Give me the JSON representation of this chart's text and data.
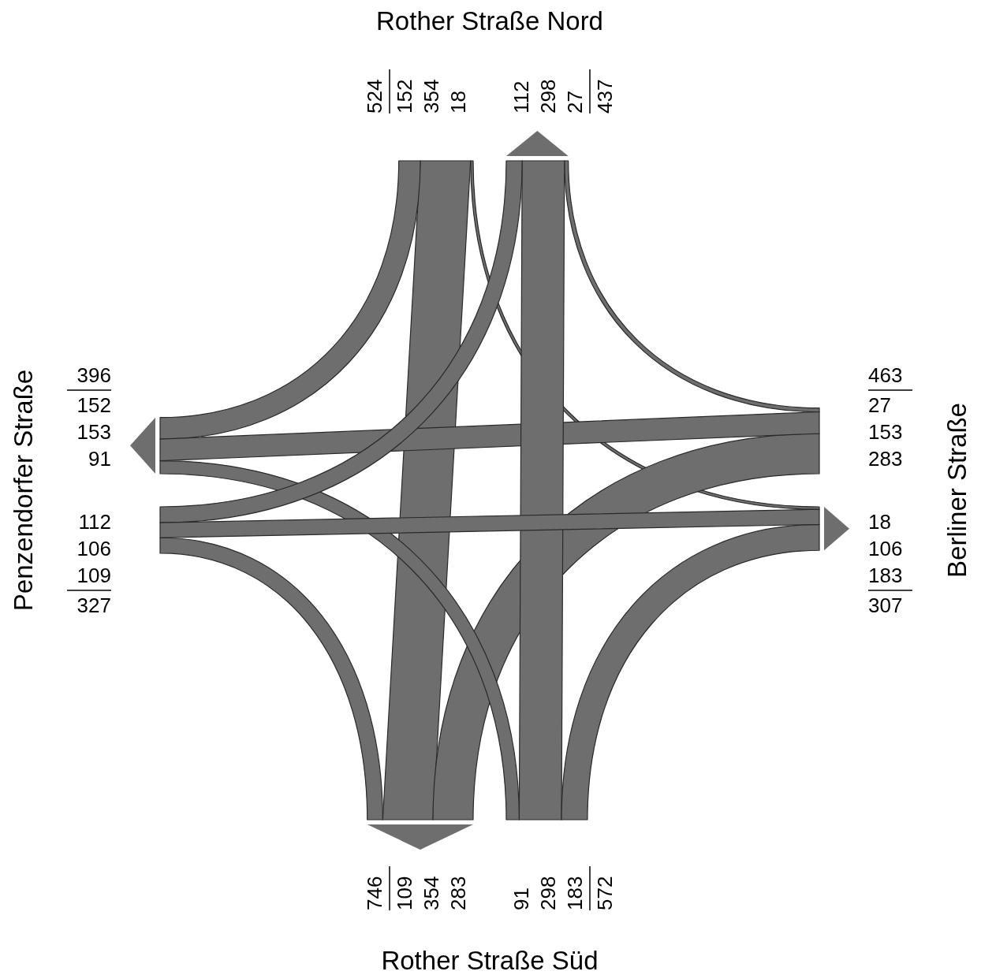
{
  "chart_data": {
    "type": "other",
    "categories": [
      "Rother Straße Nord",
      "Berliner Straße",
      "Rother Straße Süd",
      "Penzendorfer Straße"
    ],
    "series": [
      {
        "values": [
          null,
          18,
          354,
          152
        ]
      },
      {
        "values": [
          null,
          27,
          298,
          112
        ]
      },
      {
        "values": [
          27,
          null,
          283,
          153
        ]
      },
      {
        "values": [
          18,
          null,
          183,
          106
        ]
      },
      {
        "values": [
          298,
          183,
          null,
          91
        ]
      },
      {
        "values": [
          354,
          283,
          null,
          109
        ]
      },
      {
        "values": [
          112,
          106,
          109,
          null
        ]
      },
      {
        "values": [
          152,
          153,
          91,
          null
        ]
      }
    ],
    "data_labels": true,
    "totals": [
      "524",
      "437",
      "463",
      "307",
      "572",
      "746",
      "327",
      "396"
    ]
  }
}
